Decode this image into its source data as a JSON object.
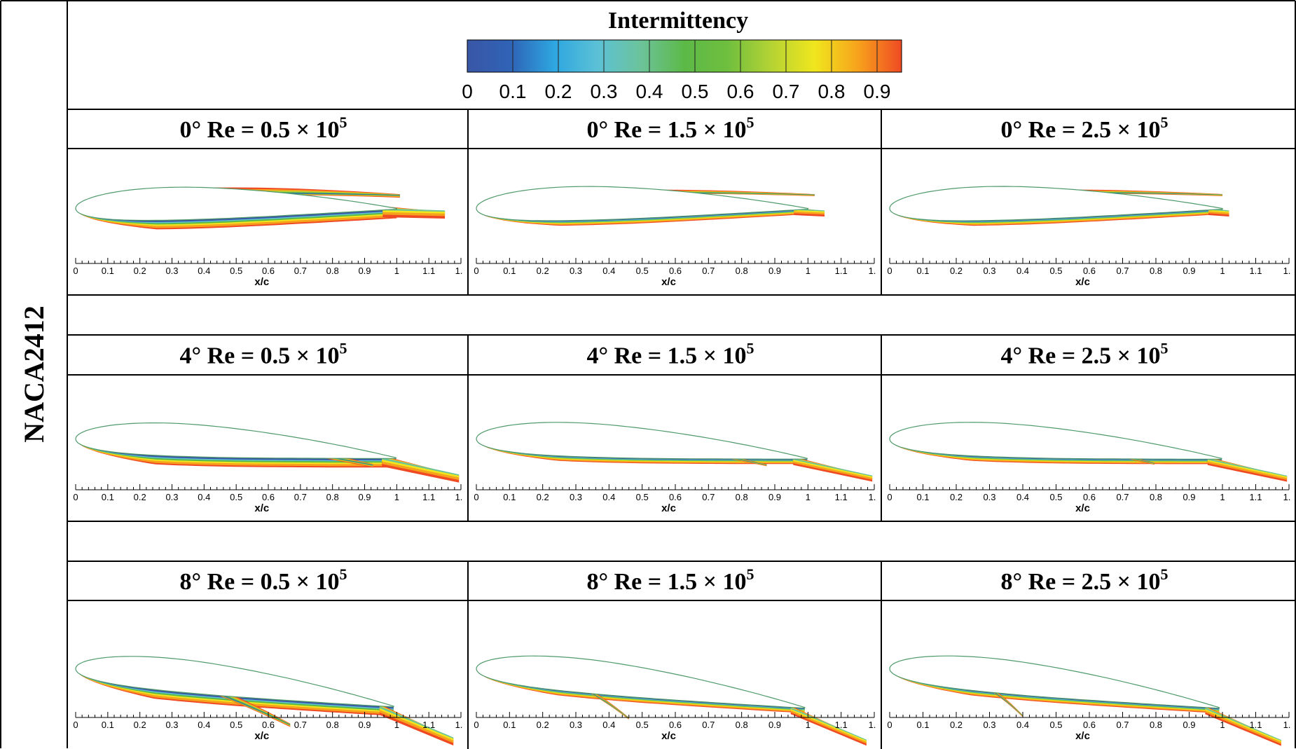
{
  "side_label": "NACA2412",
  "colorbar": {
    "title": "Intermittency",
    "ticks": [
      "0",
      "0.1",
      "0.2",
      "0.3",
      "0.4",
      "0.5",
      "0.6",
      "0.7",
      "0.8",
      "0.9"
    ],
    "colors": [
      "#3a56a6",
      "#2f63b6",
      "#2ea6e0",
      "#5cc1d6",
      "#6cc39a",
      "#5cb947",
      "#6fbf3e",
      "#b5d334",
      "#f0e61d",
      "#f7a21c",
      "#ef4a23"
    ]
  },
  "chart_data": {
    "type": "heatmap",
    "airfoil": "NACA2412",
    "quantity": "Intermittency",
    "range": [
      0,
      0.9
    ],
    "xlabel": "x/c",
    "xticks": [
      "0",
      "0.1",
      "0.2",
      "0.3",
      "0.4",
      "0.5",
      "0.6",
      "0.7",
      "0.8",
      "0.9",
      "1",
      "1.1",
      "1."
    ],
    "xlim": [
      0,
      1.2
    ],
    "angles_deg": [
      0,
      4,
      8
    ],
    "reynolds": [
      "0.5",
      "1.5",
      "2.5"
    ],
    "panels": [
      {
        "title_aoa": "0°",
        "title_re": " Re = 0.5 × 10",
        "title_exp": "5",
        "aoa": 0,
        "re": 0.5,
        "upper_wake_end": 1.01,
        "lower_wake_end": 1.15
      },
      {
        "title_aoa": "0°",
        "title_re": " Re = 1.5 × 10",
        "title_exp": "5",
        "aoa": 0,
        "re": 1.5,
        "upper_wake_end": 1.02,
        "lower_wake_end": 1.05
      },
      {
        "title_aoa": "0°",
        "title_re": " Re = 2.5 × 10",
        "title_exp": "5",
        "aoa": 0,
        "re": 2.5,
        "upper_wake_end": 1.0,
        "lower_wake_end": 1.02
      },
      {
        "title_aoa": "4°",
        "title_re": " Re = 0.5 × 10",
        "title_exp": "5",
        "aoa": 4,
        "re": 0.5,
        "upper_wake_end": 0.93,
        "lower_wake_end": 1.2
      },
      {
        "title_aoa": "4°",
        "title_re": " Re = 1.5 × 10",
        "title_exp": "5",
        "aoa": 4,
        "re": 1.5,
        "upper_wake_end": 0.88,
        "lower_wake_end": 1.2
      },
      {
        "title_aoa": "4°",
        "title_re": " Re = 2.5 × 10",
        "title_exp": "5",
        "aoa": 4,
        "re": 2.5,
        "upper_wake_end": 0.8,
        "lower_wake_end": 1.2
      },
      {
        "title_aoa": "8°",
        "title_re": " Re = 0.5 × 10",
        "title_exp": "5",
        "aoa": 8,
        "re": 0.5,
        "upper_wake_end": 0.69,
        "lower_wake_end": 1.2
      },
      {
        "title_aoa": "8°",
        "title_re": " Re = 1.5 × 10",
        "title_exp": "5",
        "aoa": 8,
        "re": 1.5,
        "upper_wake_end": 0.48,
        "lower_wake_end": 1.2
      },
      {
        "title_aoa": "8°",
        "title_re": " Re = 2.5 × 10",
        "title_exp": "5",
        "aoa": 8,
        "re": 2.5,
        "upper_wake_end": 0.42,
        "lower_wake_end": 1.2
      }
    ]
  }
}
